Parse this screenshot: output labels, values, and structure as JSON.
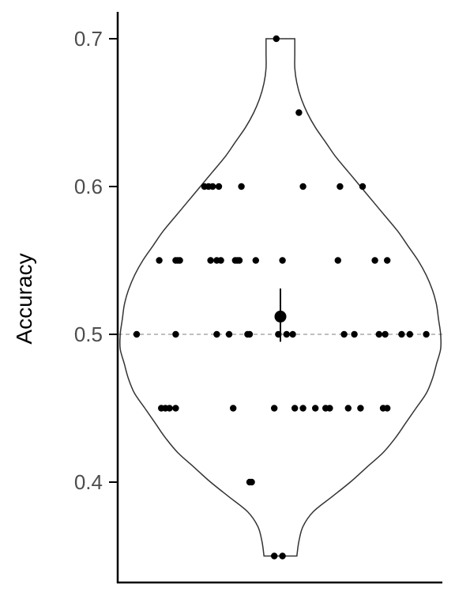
{
  "chart_data": {
    "type": "violin",
    "title": "",
    "xlabel": "",
    "ylabel": "Accuracy",
    "ylim": [
      0.35,
      0.7
    ],
    "yticks": [
      0.4,
      0.5,
      0.6,
      0.7
    ],
    "ytick_labels": [
      "0.4",
      "0.5",
      "0.6",
      "0.7"
    ],
    "reference_line": 0.5,
    "grid": false,
    "points": [
      {
        "x": -0.02,
        "y": 0.7
      },
      {
        "x": 0.09,
        "y": 0.65
      },
      {
        "x": -0.37,
        "y": 0.6
      },
      {
        "x": -0.35,
        "y": 0.6
      },
      {
        "x": -0.33,
        "y": 0.6
      },
      {
        "x": -0.3,
        "y": 0.6
      },
      {
        "x": -0.19,
        "y": 0.6
      },
      {
        "x": 0.11,
        "y": 0.6
      },
      {
        "x": 0.29,
        "y": 0.6
      },
      {
        "x": 0.4,
        "y": 0.6
      },
      {
        "x": -0.59,
        "y": 0.55
      },
      {
        "x": -0.51,
        "y": 0.55
      },
      {
        "x": -0.5,
        "y": 0.55
      },
      {
        "x": -0.49,
        "y": 0.55
      },
      {
        "x": -0.34,
        "y": 0.55
      },
      {
        "x": -0.31,
        "y": 0.55
      },
      {
        "x": -0.29,
        "y": 0.55
      },
      {
        "x": -0.22,
        "y": 0.55
      },
      {
        "x": -0.21,
        "y": 0.55
      },
      {
        "x": -0.2,
        "y": 0.55
      },
      {
        "x": -0.12,
        "y": 0.55
      },
      {
        "x": 0.01,
        "y": 0.55
      },
      {
        "x": 0.28,
        "y": 0.55
      },
      {
        "x": 0.46,
        "y": 0.55
      },
      {
        "x": 0.52,
        "y": 0.55
      },
      {
        "x": -0.7,
        "y": 0.5
      },
      {
        "x": -0.51,
        "y": 0.5
      },
      {
        "x": -0.31,
        "y": 0.5
      },
      {
        "x": -0.25,
        "y": 0.5
      },
      {
        "x": -0.16,
        "y": 0.5
      },
      {
        "x": -0.15,
        "y": 0.5
      },
      {
        "x": -0.01,
        "y": 0.5
      },
      {
        "x": 0.03,
        "y": 0.5
      },
      {
        "x": 0.06,
        "y": 0.5
      },
      {
        "x": 0.31,
        "y": 0.5
      },
      {
        "x": 0.36,
        "y": 0.5
      },
      {
        "x": 0.48,
        "y": 0.5
      },
      {
        "x": 0.51,
        "y": 0.5
      },
      {
        "x": 0.59,
        "y": 0.5
      },
      {
        "x": 0.63,
        "y": 0.5
      },
      {
        "x": 0.71,
        "y": 0.5
      },
      {
        "x": -0.58,
        "y": 0.45
      },
      {
        "x": -0.56,
        "y": 0.45
      },
      {
        "x": -0.54,
        "y": 0.45
      },
      {
        "x": -0.51,
        "y": 0.45
      },
      {
        "x": -0.23,
        "y": 0.45
      },
      {
        "x": -0.03,
        "y": 0.45
      },
      {
        "x": 0.07,
        "y": 0.45
      },
      {
        "x": 0.11,
        "y": 0.45
      },
      {
        "x": 0.17,
        "y": 0.45
      },
      {
        "x": 0.22,
        "y": 0.45
      },
      {
        "x": 0.24,
        "y": 0.45
      },
      {
        "x": 0.33,
        "y": 0.45
      },
      {
        "x": 0.39,
        "y": 0.45
      },
      {
        "x": 0.5,
        "y": 0.45
      },
      {
        "x": 0.52,
        "y": 0.45
      },
      {
        "x": -0.15,
        "y": 0.4
      },
      {
        "x": -0.14,
        "y": 0.4
      },
      {
        "x": -0.03,
        "y": 0.35
      },
      {
        "x": 0.01,
        "y": 0.35
      }
    ],
    "mean": 0.512,
    "error_bar": [
      0.495,
      0.531
    ],
    "violin_halfwidth": [
      [
        0.35,
        0.08
      ],
      [
        0.36,
        0.09
      ],
      [
        0.37,
        0.11
      ],
      [
        0.38,
        0.16
      ],
      [
        0.39,
        0.25
      ],
      [
        0.4,
        0.34
      ],
      [
        0.41,
        0.42
      ],
      [
        0.42,
        0.5
      ],
      [
        0.43,
        0.56
      ],
      [
        0.44,
        0.61
      ],
      [
        0.45,
        0.66
      ],
      [
        0.46,
        0.71
      ],
      [
        0.47,
        0.74
      ],
      [
        0.48,
        0.76
      ],
      [
        0.49,
        0.78
      ],
      [
        0.5,
        0.78
      ],
      [
        0.51,
        0.77
      ],
      [
        0.52,
        0.76
      ],
      [
        0.53,
        0.74
      ],
      [
        0.54,
        0.71
      ],
      [
        0.55,
        0.67
      ],
      [
        0.56,
        0.62
      ],
      [
        0.57,
        0.57
      ],
      [
        0.58,
        0.51
      ],
      [
        0.59,
        0.45
      ],
      [
        0.6,
        0.39
      ],
      [
        0.61,
        0.33
      ],
      [
        0.62,
        0.27
      ],
      [
        0.63,
        0.22
      ],
      [
        0.64,
        0.17
      ],
      [
        0.65,
        0.13
      ],
      [
        0.66,
        0.1
      ],
      [
        0.67,
        0.08
      ],
      [
        0.68,
        0.07
      ],
      [
        0.69,
        0.07
      ],
      [
        0.7,
        0.07
      ]
    ],
    "colors": {
      "points": "#000000",
      "violin_outline": "#333333",
      "reference_line": "#aaaaaa",
      "axis": "#000000",
      "tick_text": "#4d4d4d"
    }
  }
}
